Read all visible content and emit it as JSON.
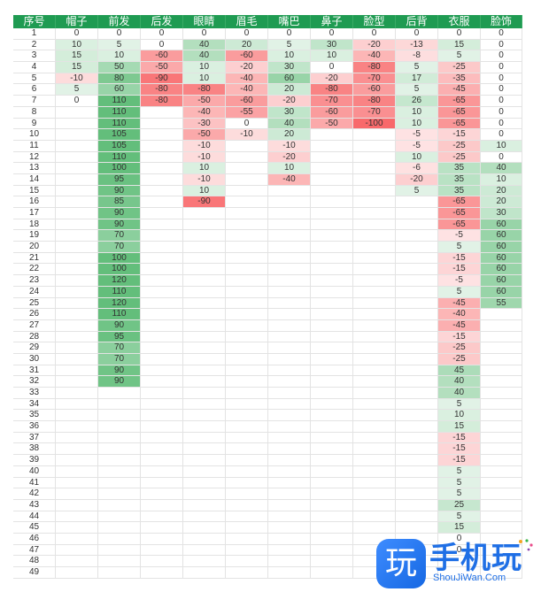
{
  "headers": [
    "序号",
    "帽子",
    "前发",
    "后发",
    "眼睛",
    "眉毛",
    "嘴巴",
    "鼻子",
    "脸型",
    "后背",
    "衣服",
    "脸饰"
  ],
  "rows": [
    [
      "1",
      "0",
      "0",
      "0",
      "0",
      "0",
      "0",
      "0",
      "0",
      "0",
      "0",
      "0"
    ],
    [
      "2",
      "10",
      "5",
      "0",
      "40",
      "20",
      "5",
      "30",
      "-20",
      "-13",
      "15",
      "0"
    ],
    [
      "3",
      "15",
      "10",
      "-60",
      "40",
      "-60",
      "10",
      "10",
      "-40",
      "-8",
      "5",
      "0"
    ],
    [
      "4",
      "15",
      "50",
      "-50",
      "10",
      "-20",
      "30",
      "0",
      "-80",
      "5",
      "-25",
      "0"
    ],
    [
      "5",
      "-10",
      "80",
      "-90",
      "10",
      "-40",
      "60",
      "-20",
      "-70",
      "17",
      "-35",
      "0"
    ],
    [
      "6",
      "5",
      "60",
      "-80",
      "-80",
      "-40",
      "20",
      "-80",
      "-60",
      "5",
      "-45",
      "0"
    ],
    [
      "7",
      "0",
      "110",
      "-80",
      "-50",
      "-60",
      "-20",
      "-70",
      "-80",
      "26",
      "-65",
      "0"
    ],
    [
      "8",
      "",
      "110",
      "",
      "-40",
      "-55",
      "30",
      "-60",
      "-70",
      "10",
      "-65",
      "0"
    ],
    [
      "9",
      "",
      "110",
      "",
      "-30",
      "0",
      "40",
      "-50",
      "-100",
      "10",
      "-65",
      "0"
    ],
    [
      "10",
      "",
      "105",
      "",
      "-50",
      "-10",
      "20",
      "",
      "",
      "-5",
      "-15",
      "0"
    ],
    [
      "11",
      "",
      "105",
      "",
      "-10",
      "",
      "-10",
      "",
      "",
      "-5",
      "-25",
      "10"
    ],
    [
      "12",
      "",
      "110",
      "",
      "-10",
      "",
      "-20",
      "",
      "",
      "10",
      "-25",
      "0"
    ],
    [
      "13",
      "",
      "100",
      "",
      "10",
      "",
      "10",
      "",
      "",
      "-6",
      "35",
      "40"
    ],
    [
      "14",
      "",
      "95",
      "",
      "-10",
      "",
      "-40",
      "",
      "",
      "-20",
      "35",
      "10"
    ],
    [
      "15",
      "",
      "90",
      "",
      "10",
      "",
      "",
      "",
      "",
      "5",
      "35",
      "20"
    ],
    [
      "16",
      "",
      "85",
      "",
      "-90",
      "",
      "",
      "",
      "",
      "",
      "-65",
      "20"
    ],
    [
      "17",
      "",
      "90",
      "",
      "",
      "",
      "",
      "",
      "",
      "",
      "-65",
      "30"
    ],
    [
      "18",
      "",
      "90",
      "",
      "",
      "",
      "",
      "",
      "",
      "",
      "-65",
      "60"
    ],
    [
      "19",
      "",
      "70",
      "",
      "",
      "",
      "",
      "",
      "",
      "",
      "-5",
      "60"
    ],
    [
      "20",
      "",
      "70",
      "",
      "",
      "",
      "",
      "",
      "",
      "",
      "5",
      "60"
    ],
    [
      "21",
      "",
      "100",
      "",
      "",
      "",
      "",
      "",
      "",
      "",
      "-15",
      "60"
    ],
    [
      "22",
      "",
      "100",
      "",
      "",
      "",
      "",
      "",
      "",
      "",
      "-15",
      "60"
    ],
    [
      "23",
      "",
      "120",
      "",
      "",
      "",
      "",
      "",
      "",
      "",
      "-5",
      "60"
    ],
    [
      "24",
      "",
      "110",
      "",
      "",
      "",
      "",
      "",
      "",
      "",
      "5",
      "60"
    ],
    [
      "25",
      "",
      "120",
      "",
      "",
      "",
      "",
      "",
      "",
      "",
      "-45",
      "55"
    ],
    [
      "26",
      "",
      "110",
      "",
      "",
      "",
      "",
      "",
      "",
      "",
      "-40",
      ""
    ],
    [
      "27",
      "",
      "90",
      "",
      "",
      "",
      "",
      "",
      "",
      "",
      "-45",
      ""
    ],
    [
      "28",
      "",
      "95",
      "",
      "",
      "",
      "",
      "",
      "",
      "",
      "-15",
      ""
    ],
    [
      "29",
      "",
      "70",
      "",
      "",
      "",
      "",
      "",
      "",
      "",
      "-25",
      ""
    ],
    [
      "30",
      "",
      "70",
      "",
      "",
      "",
      "",
      "",
      "",
      "",
      "-25",
      ""
    ],
    [
      "31",
      "",
      "90",
      "",
      "",
      "",
      "",
      "",
      "",
      "",
      "45",
      ""
    ],
    [
      "32",
      "",
      "90",
      "",
      "",
      "",
      "",
      "",
      "",
      "",
      "40",
      ""
    ],
    [
      "33",
      "",
      "",
      "",
      "",
      "",
      "",
      "",
      "",
      "",
      "40",
      ""
    ],
    [
      "34",
      "",
      "",
      "",
      "",
      "",
      "",
      "",
      "",
      "",
      "5",
      ""
    ],
    [
      "35",
      "",
      "",
      "",
      "",
      "",
      "",
      "",
      "",
      "",
      "10",
      ""
    ],
    [
      "36",
      "",
      "",
      "",
      "",
      "",
      "",
      "",
      "",
      "",
      "15",
      ""
    ],
    [
      "37",
      "",
      "",
      "",
      "",
      "",
      "",
      "",
      "",
      "",
      "-15",
      ""
    ],
    [
      "38",
      "",
      "",
      "",
      "",
      "",
      "",
      "",
      "",
      "",
      "-15",
      ""
    ],
    [
      "39",
      "",
      "",
      "",
      "",
      "",
      "",
      "",
      "",
      "",
      "-15",
      ""
    ],
    [
      "40",
      "",
      "",
      "",
      "",
      "",
      "",
      "",
      "",
      "",
      "5",
      ""
    ],
    [
      "41",
      "",
      "",
      "",
      "",
      "",
      "",
      "",
      "",
      "",
      "5",
      ""
    ],
    [
      "42",
      "",
      "",
      "",
      "",
      "",
      "",
      "",
      "",
      "",
      "5",
      ""
    ],
    [
      "43",
      "",
      "",
      "",
      "",
      "",
      "",
      "",
      "",
      "",
      "25",
      ""
    ],
    [
      "44",
      "",
      "",
      "",
      "",
      "",
      "",
      "",
      "",
      "",
      "5",
      ""
    ],
    [
      "45",
      "",
      "",
      "",
      "",
      "",
      "",
      "",
      "",
      "",
      "15",
      ""
    ],
    [
      "46",
      "",
      "",
      "",
      "",
      "",
      "",
      "",
      "",
      "",
      "0",
      ""
    ],
    [
      "47",
      "",
      "",
      "",
      "",
      "",
      "",
      "",
      "",
      "",
      "0",
      ""
    ],
    [
      "48",
      "",
      "",
      "",
      "",
      "",
      "",
      "",
      "",
      "",
      "",
      ""
    ],
    [
      "49",
      "",
      "",
      "",
      "",
      "",
      "",
      "",
      "",
      "",
      "",
      ""
    ]
  ],
  "colors": {
    "header": "#1f9b52",
    "positive": "#63be7b",
    "negative": "#f8696b",
    "neutral": "#ffffff"
  },
  "watermark": {
    "icon_text": "玩",
    "text": "手机玩",
    "domain": "ShouJiWan.Com"
  }
}
